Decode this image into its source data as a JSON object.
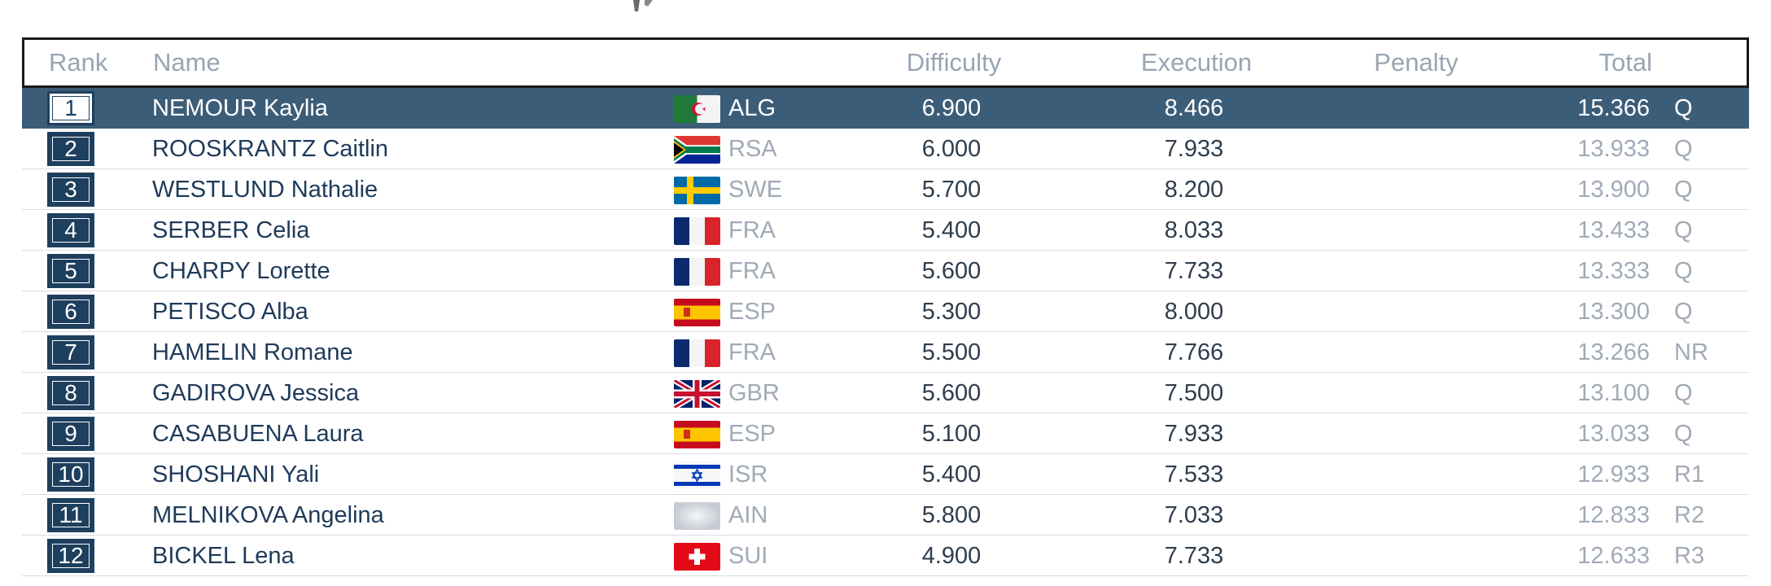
{
  "header": {
    "rank": "Rank",
    "name": "Name",
    "difficulty": "Difficulty",
    "execution": "Execution",
    "penalty": "Penalty",
    "total": "Total"
  },
  "rows": [
    {
      "rank": "1",
      "name": "NEMOUR Kaylia",
      "noc": "ALG",
      "flag": "alg-flag-icon",
      "difficulty": "6.900",
      "execution": "8.466",
      "penalty": "",
      "total": "15.366",
      "qual": "Q",
      "highlight": true
    },
    {
      "rank": "2",
      "name": "ROOSKRANTZ Caitlin",
      "noc": "RSA",
      "flag": "rsa-flag-icon",
      "difficulty": "6.000",
      "execution": "7.933",
      "penalty": "",
      "total": "13.933",
      "qual": "Q"
    },
    {
      "rank": "3",
      "name": "WESTLUND Nathalie",
      "noc": "SWE",
      "flag": "swe-flag-icon",
      "difficulty": "5.700",
      "execution": "8.200",
      "penalty": "",
      "total": "13.900",
      "qual": "Q"
    },
    {
      "rank": "4",
      "name": "SERBER Celia",
      "noc": "FRA",
      "flag": "fra-flag-icon",
      "difficulty": "5.400",
      "execution": "8.033",
      "penalty": "",
      "total": "13.433",
      "qual": "Q"
    },
    {
      "rank": "5",
      "name": "CHARPY Lorette",
      "noc": "FRA",
      "flag": "fra-flag-icon",
      "difficulty": "5.600",
      "execution": "7.733",
      "penalty": "",
      "total": "13.333",
      "qual": "Q"
    },
    {
      "rank": "6",
      "name": "PETISCO Alba",
      "noc": "ESP",
      "flag": "esp-flag-icon",
      "difficulty": "5.300",
      "execution": "8.000",
      "penalty": "",
      "total": "13.300",
      "qual": "Q"
    },
    {
      "rank": "7",
      "name": "HAMELIN Romane",
      "noc": "FRA",
      "flag": "fra-flag-icon",
      "difficulty": "5.500",
      "execution": "7.766",
      "penalty": "",
      "total": "13.266",
      "qual": "NR"
    },
    {
      "rank": "8",
      "name": "GADIROVA Jessica",
      "noc": "GBR",
      "flag": "gbr-flag-icon",
      "difficulty": "5.600",
      "execution": "7.500",
      "penalty": "",
      "total": "13.100",
      "qual": "Q"
    },
    {
      "rank": "9",
      "name": "CASABUENA Laura",
      "noc": "ESP",
      "flag": "esp-flag-icon",
      "difficulty": "5.100",
      "execution": "7.933",
      "penalty": "",
      "total": "13.033",
      "qual": "Q"
    },
    {
      "rank": "10",
      "name": "SHOSHANI Yali",
      "noc": "ISR",
      "flag": "isr-flag-icon",
      "difficulty": "5.400",
      "execution": "7.533",
      "penalty": "",
      "total": "12.933",
      "qual": "R1"
    },
    {
      "rank": "11",
      "name": "MELNIKOVA Angelina",
      "noc": "AIN",
      "flag": "ain-flag-icon",
      "difficulty": "5.800",
      "execution": "7.033",
      "penalty": "",
      "total": "12.833",
      "qual": "R2"
    },
    {
      "rank": "12",
      "name": "BICKEL Lena",
      "noc": "SUI",
      "flag": "sui-flag-icon",
      "difficulty": "4.900",
      "execution": "7.733",
      "penalty": "",
      "total": "12.633",
      "qual": "R3"
    }
  ],
  "colors": {
    "highlight_row": "#3c5d78",
    "rank_box": "#1e3f5e",
    "header_text": "#9aa4b2"
  }
}
